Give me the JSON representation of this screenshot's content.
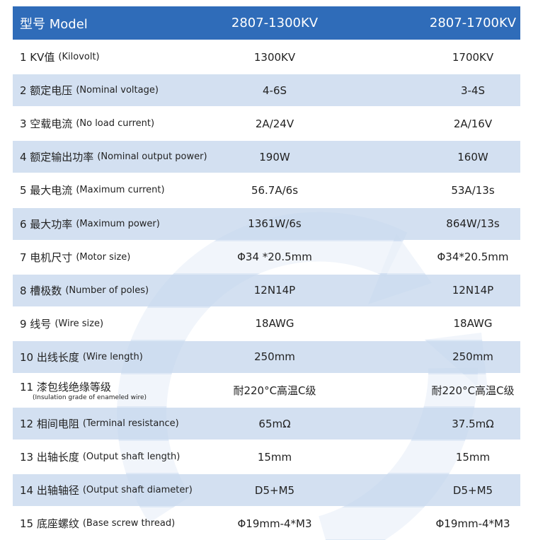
{
  "table": {
    "header": [
      "型号 Model",
      "2807-1300KV",
      "2807-1700KV"
    ],
    "rows": [
      {
        "label": "1 KV值",
        "english": "(Kilovolt)",
        "values": [
          "1300KV",
          "1700KV"
        ]
      },
      {
        "label": "2 额定电压",
        "english": "(Nominal voltage)",
        "values": [
          "4-6S",
          "3-4S"
        ]
      },
      {
        "label": "3 空载电流",
        "english": "(No load current)",
        "values": [
          "2A/24V",
          "2A/16V"
        ]
      },
      {
        "label": "4 额定输出功率",
        "english": "(Nominal output power)",
        "values": [
          "190W",
          "160W"
        ]
      },
      {
        "label": "5 最大电流",
        "english": "(Maximum current)",
        "values": [
          "56.7A/6s",
          "53A/13s"
        ]
      },
      {
        "label": "6 最大功率",
        "english": "(Maximum power)",
        "values": [
          "1361W/6s",
          "864W/13s"
        ]
      },
      {
        "label": "7 电机尺寸",
        "english": "(Motor size)",
        "values": [
          "Φ34 *20.5mm",
          "Φ34*20.5mm"
        ]
      },
      {
        "label": "8 槽极数",
        "english": "(Number of poles)",
        "values": [
          "12N14P",
          "12N14P"
        ]
      },
      {
        "label": "9 线号",
        "english": "(Wire size)",
        "values": [
          "18AWG",
          "18AWG"
        ]
      },
      {
        "label": "10 出线长度",
        "english": "(Wire length)",
        "values": [
          "250mm",
          "250mm"
        ]
      },
      {
        "label": "11 漆包线绝缘等级",
        "english": "(Insulation grade of enameled wire)",
        "values": [
          "耐220°C高温C级",
          "耐220°C高温C级"
        ]
      },
      {
        "label": "12 相间电阻",
        "english": "(Terminal resistance)",
        "values": [
          "65mΩ",
          "37.5mΩ"
        ]
      },
      {
        "label": "13 出轴长度",
        "english": "(Output shaft length)",
        "values": [
          "15mm",
          "15mm"
        ]
      },
      {
        "label": "14 出轴轴径",
        "english": "(Output shaft diameter)",
        "values": [
          "D5+M5",
          "D5+M5"
        ]
      },
      {
        "label": "15 底座螺纹",
        "english": "(Base screw thread)",
        "values": [
          "Φ19mm-4*M3",
          "Φ19mm-4*M3"
        ]
      }
    ]
  }
}
